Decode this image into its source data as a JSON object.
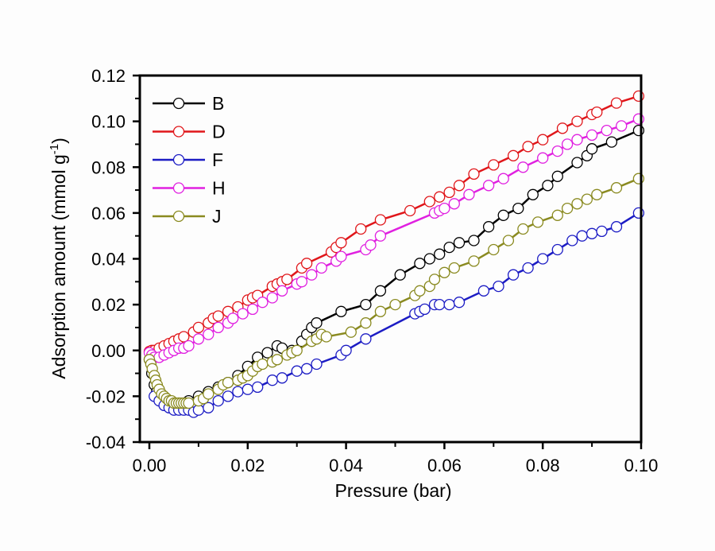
{
  "chart_data": {
    "type": "line",
    "title": "",
    "xlabel": "Pressure (bar)",
    "ylabel": "Adsorption amount (mmol g",
    "ylabel_superscript": "-1",
    "ylabel_suffix": ")",
    "xlim": [
      0.0,
      0.1
    ],
    "ylim": [
      -0.04,
      0.12
    ],
    "x_ticks": [
      "0.00",
      "0.02",
      "0.04",
      "0.06",
      "0.08",
      "0.10"
    ],
    "x_tick_values": [
      0.0,
      0.02,
      0.04,
      0.06,
      0.08,
      0.1
    ],
    "y_ticks": [
      "-0.04",
      "-0.02",
      "0.00",
      "0.02",
      "0.04",
      "0.06",
      "0.08",
      "0.10",
      "0.12"
    ],
    "y_tick_values": [
      -0.04,
      -0.02,
      0.0,
      0.02,
      0.04,
      0.06,
      0.08,
      0.1,
      0.12
    ],
    "grid": false,
    "legend_position": "top-left",
    "marker": "open-circle",
    "series": [
      {
        "name": "B",
        "color": "#000000",
        "x": [
          0.0,
          0.0005,
          0.001,
          0.0015,
          0.002,
          0.003,
          0.004,
          0.005,
          0.006,
          0.007,
          0.008,
          0.01,
          0.012,
          0.014,
          0.016,
          0.018,
          0.02,
          0.022,
          0.024,
          0.026,
          0.027,
          0.029,
          0.031,
          0.032,
          0.033,
          0.034,
          0.039,
          0.044,
          0.047,
          0.051,
          0.055,
          0.057,
          0.059,
          0.061,
          0.063,
          0.066,
          0.069,
          0.072,
          0.075,
          0.078,
          0.081,
          0.083,
          0.087,
          0.089,
          0.09,
          0.094,
          0.0995
        ],
        "y": [
          -0.004,
          -0.01,
          -0.015,
          -0.018,
          -0.02,
          -0.022,
          -0.023,
          -0.023,
          -0.023,
          -0.023,
          -0.022,
          -0.02,
          -0.018,
          -0.016,
          -0.014,
          -0.011,
          -0.007,
          -0.003,
          -0.001,
          0.002,
          0.001,
          0.0,
          0.004,
          0.007,
          0.01,
          0.012,
          0.017,
          0.02,
          0.026,
          0.033,
          0.038,
          0.04,
          0.042,
          0.045,
          0.047,
          0.048,
          0.054,
          0.059,
          0.062,
          0.068,
          0.072,
          0.076,
          0.082,
          0.085,
          0.088,
          0.091,
          0.096
        ]
      },
      {
        "name": "D",
        "color": "#e0161a",
        "x": [
          0.0,
          0.0005,
          0.001,
          0.002,
          0.003,
          0.004,
          0.005,
          0.006,
          0.007,
          0.009,
          0.01,
          0.012,
          0.013,
          0.014,
          0.016,
          0.018,
          0.02,
          0.021,
          0.022,
          0.025,
          0.026,
          0.027,
          0.028,
          0.031,
          0.032,
          0.037,
          0.038,
          0.039,
          0.043,
          0.047,
          0.053,
          0.057,
          0.059,
          0.061,
          0.063,
          0.066,
          0.07,
          0.074,
          0.077,
          0.08,
          0.084,
          0.087,
          0.09,
          0.091,
          0.095,
          0.0995
        ],
        "y": [
          -0.0005,
          0.0,
          0.0,
          0.001,
          0.002,
          0.003,
          0.004,
          0.005,
          0.006,
          0.008,
          0.01,
          0.012,
          0.014,
          0.015,
          0.017,
          0.019,
          0.022,
          0.023,
          0.024,
          0.028,
          0.029,
          0.03,
          0.031,
          0.036,
          0.038,
          0.043,
          0.045,
          0.047,
          0.053,
          0.057,
          0.061,
          0.065,
          0.067,
          0.069,
          0.072,
          0.077,
          0.081,
          0.085,
          0.089,
          0.092,
          0.097,
          0.1,
          0.103,
          0.104,
          0.108,
          0.111
        ]
      },
      {
        "name": "F",
        "color": "#1c1cc4",
        "x": [
          0.001,
          0.002,
          0.003,
          0.004,
          0.005,
          0.006,
          0.007,
          0.008,
          0.009,
          0.01,
          0.012,
          0.014,
          0.016,
          0.018,
          0.02,
          0.022,
          0.025,
          0.027,
          0.03,
          0.032,
          0.034,
          0.039,
          0.04,
          0.044,
          0.054,
          0.055,
          0.056,
          0.058,
          0.059,
          0.061,
          0.063,
          0.068,
          0.071,
          0.074,
          0.077,
          0.08,
          0.083,
          0.086,
          0.088,
          0.09,
          0.092,
          0.095,
          0.0995
        ],
        "y": [
          -0.02,
          -0.022,
          -0.024,
          -0.025,
          -0.026,
          -0.026,
          -0.026,
          -0.026,
          -0.027,
          -0.026,
          -0.025,
          -0.022,
          -0.02,
          -0.018,
          -0.017,
          -0.016,
          -0.013,
          -0.012,
          -0.009,
          -0.008,
          -0.006,
          -0.002,
          0.0,
          0.005,
          0.016,
          0.017,
          0.018,
          0.02,
          0.02,
          0.02,
          0.021,
          0.026,
          0.028,
          0.033,
          0.036,
          0.04,
          0.044,
          0.048,
          0.05,
          0.051,
          0.052,
          0.054,
          0.06
        ]
      },
      {
        "name": "H",
        "color": "#e020e0",
        "x": [
          0.0,
          0.0005,
          0.001,
          0.002,
          0.003,
          0.004,
          0.005,
          0.006,
          0.007,
          0.008,
          0.01,
          0.012,
          0.014,
          0.016,
          0.017,
          0.019,
          0.021,
          0.023,
          0.025,
          0.027,
          0.03,
          0.031,
          0.033,
          0.035,
          0.038,
          0.039,
          0.044,
          0.045,
          0.047,
          0.058,
          0.059,
          0.06,
          0.062,
          0.065,
          0.069,
          0.072,
          0.076,
          0.08,
          0.083,
          0.085,
          0.087,
          0.09,
          0.093,
          0.096,
          0.0995
        ],
        "y": [
          -0.001,
          -0.002,
          -0.003,
          -0.003,
          -0.002,
          -0.001,
          0.0,
          0.001,
          0.001,
          0.002,
          0.005,
          0.007,
          0.01,
          0.012,
          0.014,
          0.016,
          0.018,
          0.021,
          0.023,
          0.026,
          0.029,
          0.03,
          0.033,
          0.036,
          0.039,
          0.041,
          0.044,
          0.046,
          0.05,
          0.06,
          0.061,
          0.062,
          0.064,
          0.068,
          0.072,
          0.075,
          0.08,
          0.084,
          0.087,
          0.09,
          0.092,
          0.094,
          0.096,
          0.098,
          0.101
        ]
      },
      {
        "name": "J",
        "color": "#8a8a20",
        "x": [
          0.0,
          0.0003,
          0.0006,
          0.001,
          0.0013,
          0.0016,
          0.002,
          0.0025,
          0.003,
          0.0035,
          0.004,
          0.0045,
          0.005,
          0.0055,
          0.006,
          0.0065,
          0.007,
          0.0075,
          0.008,
          0.01,
          0.011,
          0.012,
          0.014,
          0.015,
          0.016,
          0.018,
          0.019,
          0.02,
          0.021,
          0.022,
          0.023,
          0.025,
          0.026,
          0.028,
          0.029,
          0.03,
          0.033,
          0.034,
          0.035,
          0.036,
          0.041,
          0.044,
          0.047,
          0.05,
          0.054,
          0.055,
          0.057,
          0.058,
          0.06,
          0.062,
          0.066,
          0.07,
          0.073,
          0.076,
          0.079,
          0.083,
          0.085,
          0.087,
          0.089,
          0.091,
          0.095,
          0.0995
        ],
        "y": [
          -0.004,
          -0.006,
          -0.008,
          -0.011,
          -0.013,
          -0.015,
          -0.017,
          -0.019,
          -0.02,
          -0.021,
          -0.022,
          -0.022,
          -0.023,
          -0.023,
          -0.023,
          -0.023,
          -0.023,
          -0.023,
          -0.023,
          -0.022,
          -0.021,
          -0.019,
          -0.017,
          -0.015,
          -0.014,
          -0.013,
          -0.012,
          -0.011,
          -0.009,
          -0.007,
          -0.006,
          -0.005,
          -0.004,
          -0.002,
          -0.001,
          0.0,
          0.004,
          0.005,
          0.007,
          0.006,
          0.008,
          0.012,
          0.017,
          0.02,
          0.024,
          0.026,
          0.028,
          0.031,
          0.034,
          0.036,
          0.039,
          0.044,
          0.048,
          0.053,
          0.056,
          0.059,
          0.062,
          0.064,
          0.066,
          0.068,
          0.071,
          0.075
        ]
      }
    ]
  }
}
